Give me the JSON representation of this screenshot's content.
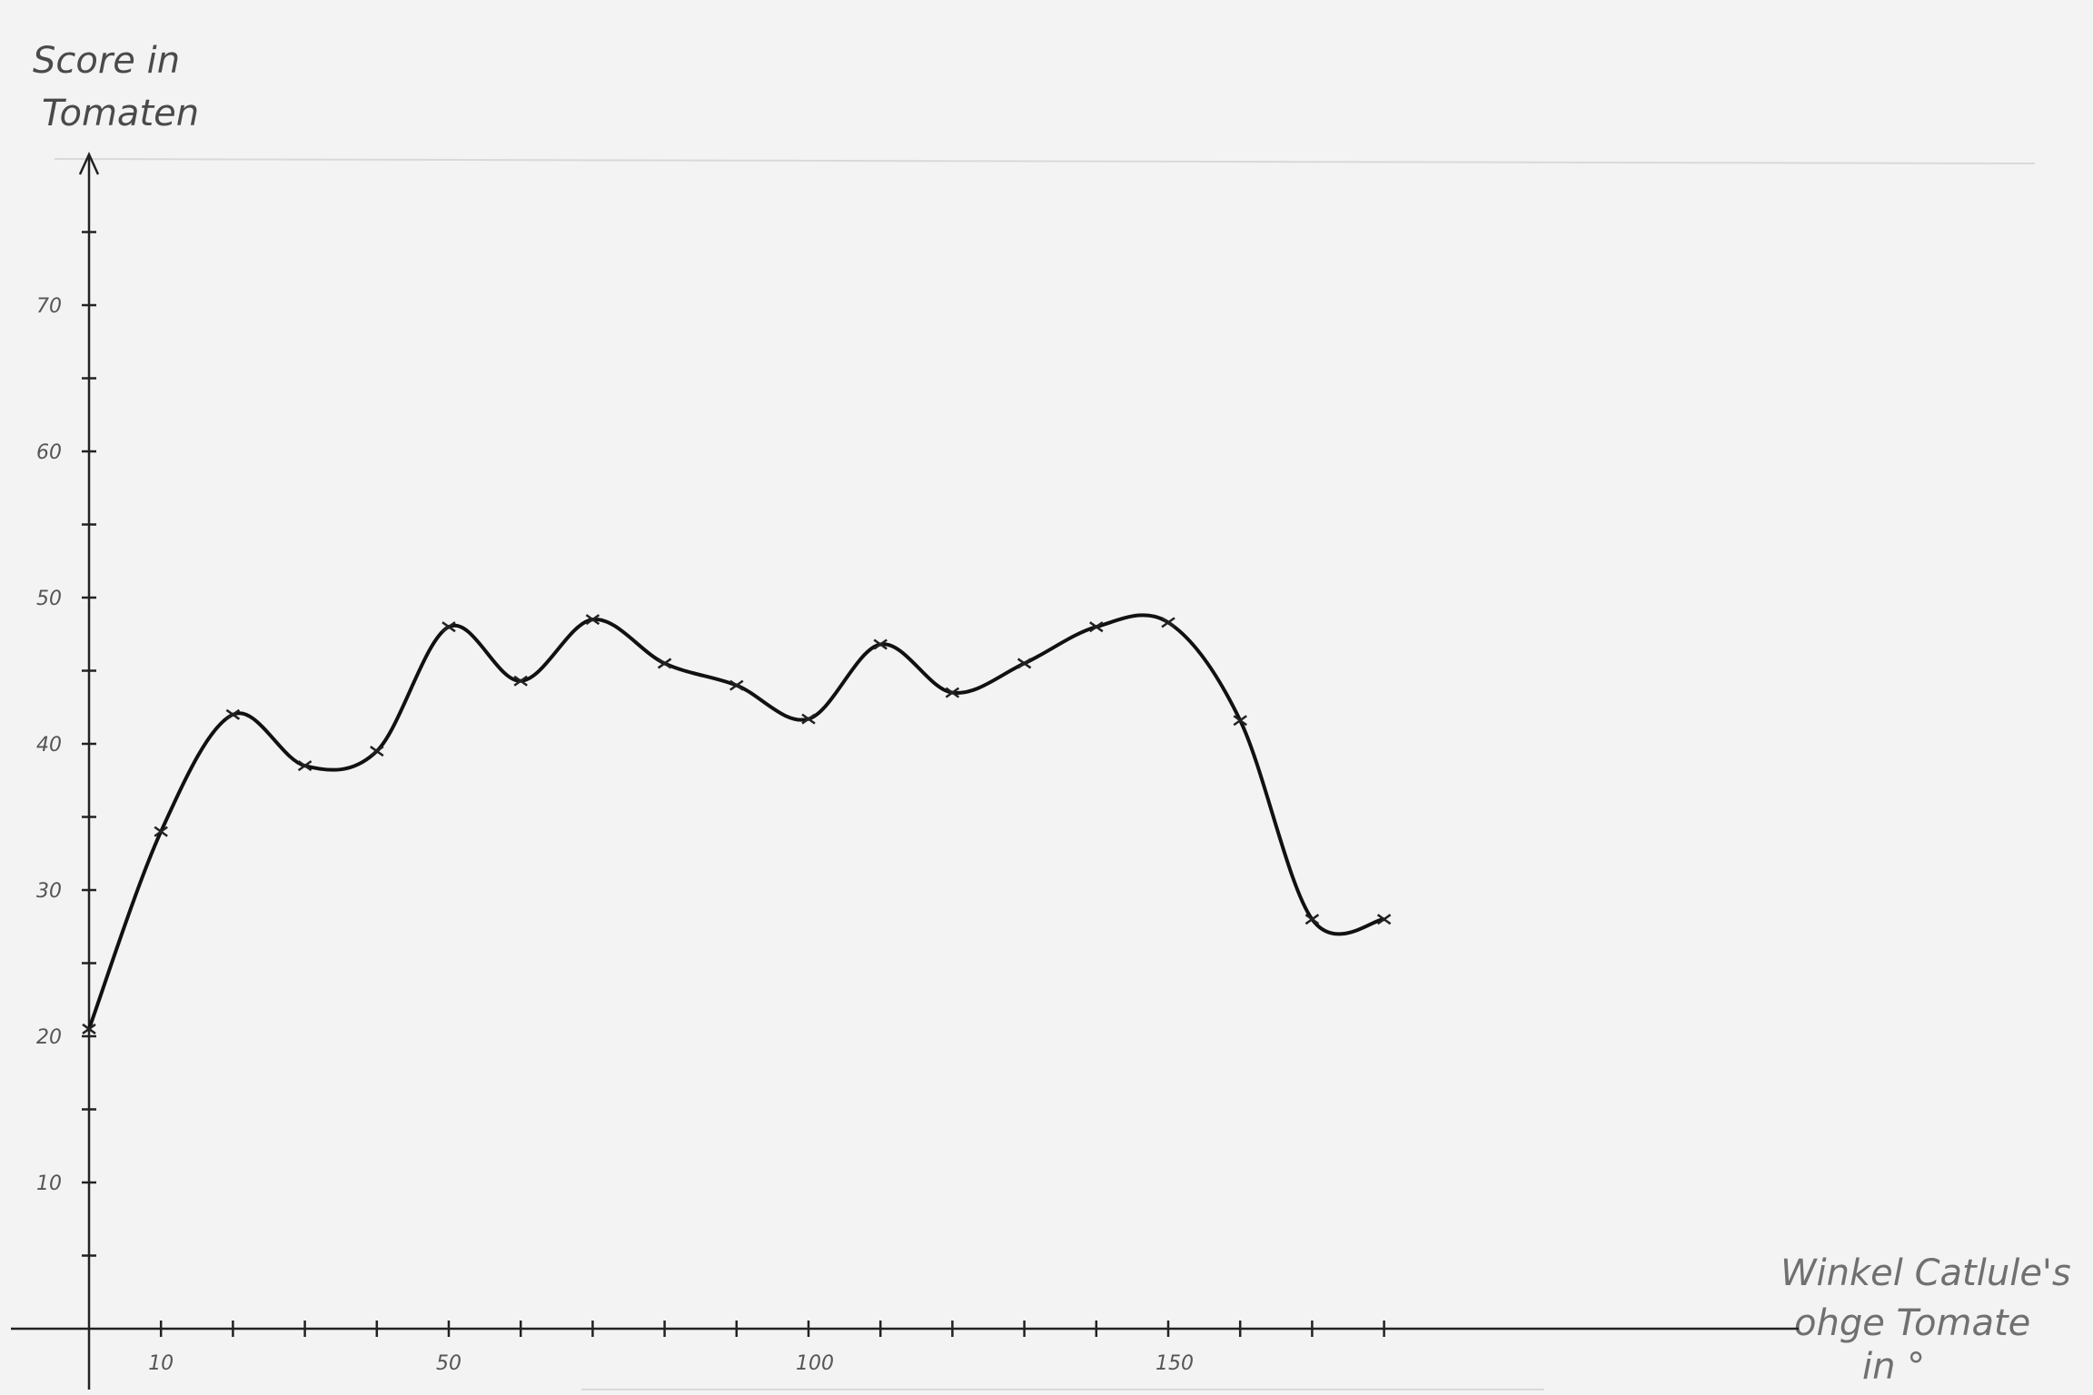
{
  "chart_data": {
    "type": "line",
    "ylabel_lines": [
      "Score in",
      "Tomaten"
    ],
    "xlabel_lines": [
      "Winkel Catlule's",
      "ohge Tomate",
      "in °"
    ],
    "xlim": [
      -10,
      220
    ],
    "ylim": [
      0,
      80
    ],
    "x_tick_step": 10,
    "y_tick_step": 5,
    "x_tick_labels": [
      {
        "value": 10,
        "text": "10"
      },
      {
        "value": 50,
        "text": "50"
      },
      {
        "value": 100,
        "text": "100"
      },
      {
        "value": 150,
        "text": "150"
      }
    ],
    "y_tick_labels": [
      {
        "value": 10,
        "text": "10"
      },
      {
        "value": 20,
        "text": "20"
      },
      {
        "value": 30,
        "text": "30"
      },
      {
        "value": 40,
        "text": "40"
      },
      {
        "value": 50,
        "text": "50"
      },
      {
        "value": 60,
        "text": "60"
      },
      {
        "value": 70,
        "text": "70"
      }
    ],
    "grid": false,
    "series": [
      {
        "x": [
          0,
          10,
          20,
          30,
          40,
          50,
          60,
          70,
          80,
          90,
          100,
          110,
          120,
          130,
          140,
          150,
          160,
          170,
          180
        ],
        "y": [
          20.5,
          34,
          42,
          38.5,
          39.5,
          48,
          44.3,
          48.5,
          45.5,
          44,
          41.7,
          46.8,
          43.5,
          45.5,
          48,
          48.3,
          41.6,
          28,
          28
        ]
      }
    ]
  }
}
